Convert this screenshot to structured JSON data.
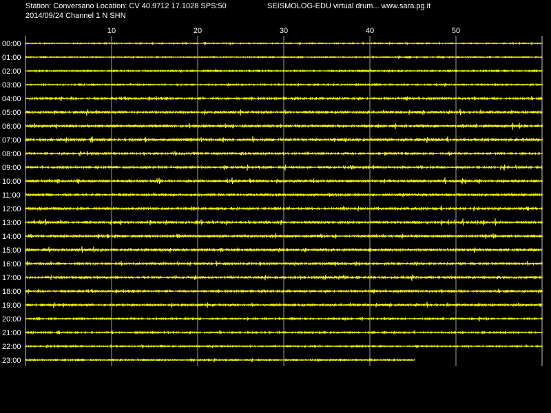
{
  "header": {
    "station_line": "Station: Conversano Location: CV 40.9712 17.1028 SPS:50",
    "date_line": "2014/09/24  Channel 1 N SHN",
    "title": "SEISMOLOG-EDU virtual drum... www.sara.pg.it"
  },
  "colors": {
    "background": "#000000",
    "trace": "#ffff00",
    "grid": "#c8c8c8",
    "text": "#ffffff"
  },
  "chart_data": {
    "type": "line",
    "title": "",
    "xlabel": "",
    "ylabel": "",
    "x_unit": "minutes",
    "xlim": [
      0,
      60
    ],
    "x_ticks": [
      10,
      20,
      30,
      40,
      50
    ],
    "grid": true,
    "rows": [
      {
        "label": "00:00",
        "end_minute": 60,
        "noise": 0.5
      },
      {
        "label": "01:00",
        "end_minute": 60,
        "noise": 0.5
      },
      {
        "label": "02:00",
        "end_minute": 60,
        "noise": 0.6
      },
      {
        "label": "03:00",
        "end_minute": 60,
        "noise": 0.6
      },
      {
        "label": "04:00",
        "end_minute": 60,
        "noise": 0.9
      },
      {
        "label": "05:00",
        "end_minute": 60,
        "noise": 1.0
      },
      {
        "label": "06:00",
        "end_minute": 60,
        "noise": 1.1
      },
      {
        "label": "07:00",
        "end_minute": 60,
        "noise": 1.2
      },
      {
        "label": "08:00",
        "end_minute": 60,
        "noise": 0.9
      },
      {
        "label": "09:00",
        "end_minute": 60,
        "noise": 0.9
      },
      {
        "label": "10:00",
        "end_minute": 60,
        "noise": 1.0
      },
      {
        "label": "11:00",
        "end_minute": 60,
        "noise": 1.0
      },
      {
        "label": "12:00",
        "end_minute": 60,
        "noise": 1.0
      },
      {
        "label": "13:00",
        "end_minute": 60,
        "noise": 1.0
      },
      {
        "label": "14:00",
        "end_minute": 60,
        "noise": 1.0
      },
      {
        "label": "15:00",
        "end_minute": 60,
        "noise": 1.1
      },
      {
        "label": "16:00",
        "end_minute": 60,
        "noise": 1.0
      },
      {
        "label": "17:00",
        "end_minute": 60,
        "noise": 1.0
      },
      {
        "label": "18:00",
        "end_minute": 60,
        "noise": 0.9
      },
      {
        "label": "19:00",
        "end_minute": 60,
        "noise": 0.9
      },
      {
        "label": "20:00",
        "end_minute": 60,
        "noise": 0.7
      },
      {
        "label": "21:00",
        "end_minute": 60,
        "noise": 0.7
      },
      {
        "label": "22:00",
        "end_minute": 60,
        "noise": 0.6
      },
      {
        "label": "23:00",
        "end_minute": 45.2,
        "noise": 0.6
      }
    ]
  }
}
